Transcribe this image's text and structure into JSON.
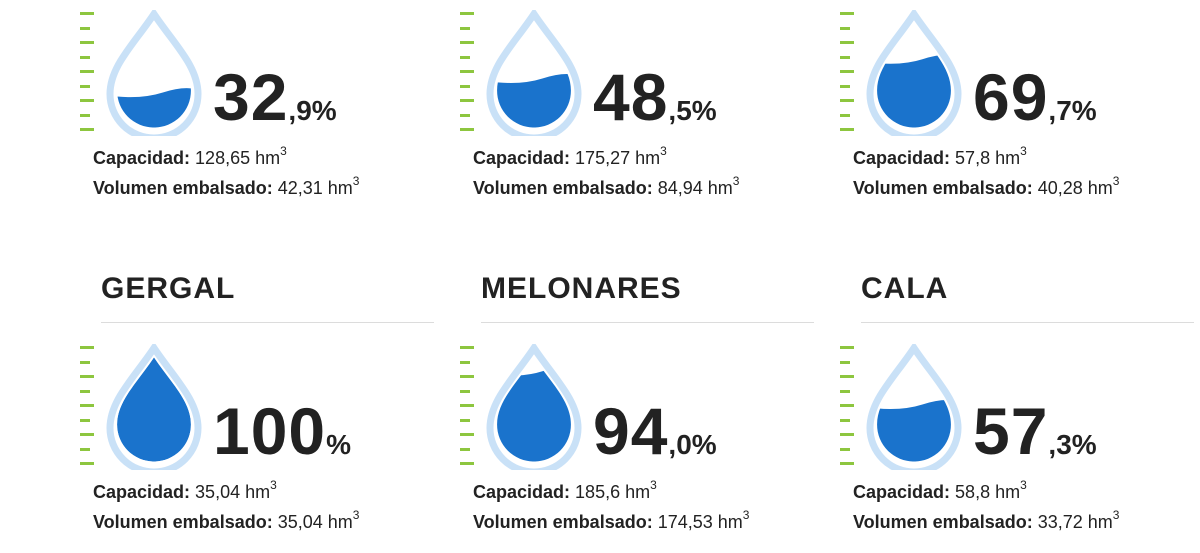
{
  "reservoirs": [
    {
      "name": "",
      "percent_int": "32",
      "percent_dec": ",9%",
      "fill": 0.329,
      "capacity_label": "Capacidad:",
      "capacity_value": "128,65 hm",
      "volume_label": "Volumen embalsado:",
      "volume_value": "42,31 hm",
      "unit_exp": "3"
    },
    {
      "name": "",
      "percent_int": "48",
      "percent_dec": ",5%",
      "fill": 0.485,
      "capacity_label": "Capacidad:",
      "capacity_value": "175,27 hm",
      "volume_label": "Volumen embalsado:",
      "volume_value": "84,94 hm",
      "unit_exp": "3"
    },
    {
      "name": "",
      "percent_int": "69",
      "percent_dec": ",7%",
      "fill": 0.697,
      "capacity_label": "Capacidad:",
      "capacity_value": "57,8 hm",
      "volume_label": "Volumen embalsado:",
      "volume_value": "40,28 hm",
      "unit_exp": "3"
    },
    {
      "name": "GERGAL",
      "percent_int": "100",
      "percent_dec": "%",
      "fill": 1.0,
      "capacity_label": "Capacidad:",
      "capacity_value": "35,04 hm",
      "volume_label": "Volumen embalsado:",
      "volume_value": "35,04 hm",
      "unit_exp": "3"
    },
    {
      "name": "MELONARES",
      "percent_int": "94",
      "percent_dec": ",0%",
      "fill": 0.94,
      "capacity_label": "Capacidad:",
      "capacity_value": "185,6 hm",
      "volume_label": "Volumen embalsado:",
      "volume_value": "174,53 hm",
      "unit_exp": "3"
    },
    {
      "name": "CALA",
      "percent_int": "57",
      "percent_dec": ",3%",
      "fill": 0.573,
      "capacity_label": "Capacidad:",
      "capacity_value": "58,8 hm",
      "volume_label": "Volumen embalsado:",
      "volume_value": "33,72 hm",
      "unit_exp": "3"
    }
  ],
  "colors": {
    "water": "#1a73cc",
    "drop_outline": "#c9e1f7",
    "ruler": "#8dc63f",
    "text": "#222222"
  },
  "icons": [
    "water-drop-icon",
    "level-ruler-icon"
  ]
}
